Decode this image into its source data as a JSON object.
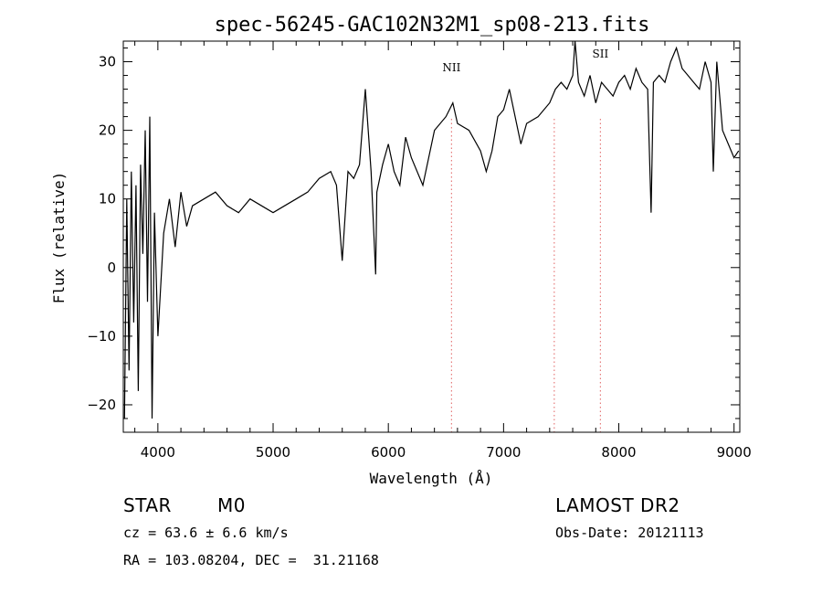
{
  "chart_data": {
    "type": "line",
    "title": "spec-56245-GAC102N32M1_sp08-213.fits",
    "xlabel": "Wavelength (Å)",
    "ylabel": "Flux (relative)",
    "xlim": [
      3700,
      9050
    ],
    "ylim": [
      -24,
      33
    ],
    "xticks": [
      4000,
      5000,
      6000,
      7000,
      8000,
      9000
    ],
    "yticks": [
      -20,
      -10,
      0,
      10,
      20,
      30
    ],
    "ytick_labels": [
      "−20",
      "−10",
      "0",
      "10",
      "20",
      "30"
    ],
    "line_color": "#000000",
    "marker_color": "#e06060",
    "line_markers": [
      {
        "wavelength": 6548,
        "label": "NII"
      },
      {
        "wavelength": 7440,
        "label": ""
      },
      {
        "wavelength": 7840,
        "label": "SII"
      }
    ],
    "series": [
      {
        "x": [
          3710,
          3730,
          3750,
          3770,
          3790,
          3810,
          3830,
          3850,
          3870,
          3890,
          3910,
          3930,
          3950,
          3970,
          4000,
          4050,
          4100,
          4150,
          4200,
          4250,
          4300,
          4400,
          4500,
          4600,
          4700,
          4800,
          4900,
          5000,
          5100,
          5200,
          5300,
          5400,
          5500,
          5550,
          5600,
          5650,
          5700,
          5750,
          5800,
          5850,
          5890,
          5900,
          5950,
          6000,
          6050,
          6100,
          6150,
          6200,
          6300,
          6400,
          6500,
          6560,
          6600,
          6700,
          6800,
          6850,
          6900,
          6950,
          7000,
          7050,
          7100,
          7150,
          7200,
          7300,
          7400,
          7450,
          7500,
          7550,
          7600,
          7620,
          7650,
          7700,
          7750,
          7800,
          7850,
          7900,
          7950,
          8000,
          8050,
          8100,
          8150,
          8200,
          8250,
          8280,
          8300,
          8350,
          8400,
          8450,
          8500,
          8550,
          8600,
          8650,
          8700,
          8750,
          8800,
          8820,
          8850,
          8900,
          8950,
          9000,
          9040
        ],
        "y": [
          -22,
          10,
          -15,
          14,
          -8,
          12,
          -18,
          15,
          2,
          20,
          -5,
          22,
          -22,
          8,
          -10,
          5,
          10,
          3,
          11,
          6,
          9,
          10,
          11,
          9,
          8,
          10,
          9,
          8,
          9,
          10,
          11,
          13,
          14,
          12,
          1,
          14,
          13,
          15,
          26,
          14,
          -1,
          11,
          15,
          18,
          14,
          12,
          19,
          16,
          12,
          20,
          22,
          24,
          21,
          20,
          17,
          14,
          17,
          22,
          23,
          26,
          22,
          18,
          21,
          22,
          24,
          26,
          27,
          26,
          28,
          33,
          27,
          25,
          28,
          24,
          27,
          26,
          25,
          27,
          28,
          26,
          29,
          27,
          26,
          8,
          27,
          28,
          27,
          30,
          32,
          29,
          28,
          27,
          26,
          30,
          27,
          14,
          30,
          20,
          18,
          16,
          17
        ]
      }
    ]
  },
  "info": {
    "object_class": "STAR",
    "subclass": "M0",
    "survey": "LAMOST DR2",
    "redshift": "cz = 63.6 ± 6.6 km/s",
    "obs_date": "Obs-Date: 20121113",
    "coords": "RA = 103.08204, DEC =  31.21168"
  }
}
